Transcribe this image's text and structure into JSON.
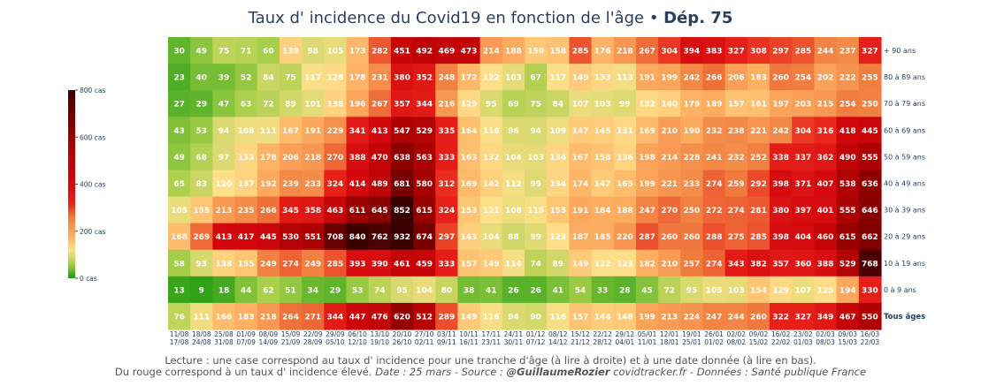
{
  "title_main": "Taux d' incidence du Covid19 en fonction de l'âge",
  "title_sep": " • ",
  "title_bold": "Dép. 75",
  "footer_line1": "Lecture : une case correspond au taux d' incidence pour une tranche d'âge (à lire à droite) et à une date donnée (à lire en bas).",
  "footer_line2_plain": "Du rouge correspond à un taux d' incidence élevé.",
  "footer_line2_italic": "Date : 25 mars - Source : ",
  "footer_line2_bold": "@GuillaumeRozier",
  "footer_line2_tail": " covidtracker.fr - Données : Santé publique France",
  "chart_data": {
    "type": "heatmap",
    "x_labels": [
      [
        "11/08",
        "17/08"
      ],
      [
        "18/08",
        "24/08"
      ],
      [
        "25/08",
        "31/08"
      ],
      [
        "01/09",
        "07/09"
      ],
      [
        "08/09",
        "14/09"
      ],
      [
        "15/09",
        "21/09"
      ],
      [
        "22/09",
        "28/09"
      ],
      [
        "29/09",
        "05/10"
      ],
      [
        "06/10",
        "12/10"
      ],
      [
        "13/10",
        "19/10"
      ],
      [
        "20/10",
        "26/10"
      ],
      [
        "27/10",
        "02/11"
      ],
      [
        "03/11",
        "09/11"
      ],
      [
        "10/11",
        "16/11"
      ],
      [
        "17/11",
        "23/11"
      ],
      [
        "24/11",
        "30/11"
      ],
      [
        "01/12",
        "07/12"
      ],
      [
        "08/12",
        "14/12"
      ],
      [
        "15/12",
        "21/12"
      ],
      [
        "22/12",
        "28/12"
      ],
      [
        "29/12",
        "04/01"
      ],
      [
        "05/01",
        "11/01"
      ],
      [
        "12/01",
        "18/01"
      ],
      [
        "19/01",
        "25/01"
      ],
      [
        "26/01",
        "01/02"
      ],
      [
        "02/02",
        "08/02"
      ],
      [
        "09/02",
        "15/02"
      ],
      [
        "16/02",
        "22/02"
      ],
      [
        "23/02",
        "01/03"
      ],
      [
        "02/03",
        "08/03"
      ],
      [
        "09/03",
        "15/03"
      ],
      [
        "16/03",
        "22/03"
      ]
    ],
    "y_labels": [
      "+ 90 ans",
      "80 à 89 ans",
      "70 à 79 ans",
      "60 à 69 ans",
      "50 à 59 ans",
      "40 à 49 ans",
      "30 à 39 ans",
      "20 à 29 ans",
      "10 à 19 ans",
      "0 à 9 ans",
      "Tous âges"
    ],
    "values": [
      [
        30,
        49,
        75,
        71,
        60,
        139,
        98,
        105,
        173,
        282,
        451,
        492,
        469,
        473,
        214,
        188,
        150,
        158,
        285,
        176,
        218,
        267,
        304,
        394,
        383,
        327,
        308,
        297,
        285,
        244,
        237,
        327
      ],
      [
        23,
        40,
        39,
        52,
        84,
        75,
        117,
        128,
        178,
        231,
        380,
        352,
        248,
        172,
        122,
        103,
        67,
        117,
        149,
        133,
        113,
        191,
        199,
        242,
        266,
        206,
        183,
        260,
        254,
        202,
        222,
        255
      ],
      [
        27,
        29,
        47,
        63,
        72,
        89,
        101,
        138,
        196,
        267,
        357,
        344,
        216,
        129,
        95,
        69,
        75,
        84,
        107,
        103,
        99,
        132,
        140,
        179,
        189,
        157,
        161,
        197,
        203,
        215,
        254,
        250
      ],
      [
        43,
        53,
        94,
        108,
        111,
        167,
        191,
        229,
        341,
        413,
        547,
        529,
        335,
        164,
        116,
        96,
        94,
        109,
        147,
        145,
        131,
        169,
        210,
        190,
        232,
        238,
        221,
        242,
        304,
        316,
        418,
        445
      ],
      [
        49,
        68,
        97,
        133,
        178,
        206,
        218,
        270,
        388,
        470,
        638,
        563,
        333,
        163,
        132,
        104,
        103,
        134,
        167,
        158,
        136,
        198,
        214,
        228,
        241,
        232,
        252,
        338,
        337,
        362,
        490,
        555
      ],
      [
        65,
        83,
        120,
        137,
        192,
        239,
        233,
        324,
        414,
        489,
        681,
        580,
        312,
        169,
        142,
        112,
        99,
        134,
        174,
        147,
        165,
        199,
        221,
        233,
        274,
        259,
        292,
        398,
        371,
        407,
        538,
        636
      ],
      [
        105,
        155,
        213,
        235,
        266,
        345,
        358,
        463,
        611,
        645,
        852,
        615,
        324,
        153,
        121,
        108,
        115,
        155,
        191,
        184,
        188,
        247,
        270,
        250,
        272,
        274,
        281,
        380,
        397,
        401,
        555,
        646
      ],
      [
        168,
        269,
        413,
        417,
        445,
        530,
        551,
        708,
        840,
        762,
        932,
        674,
        297,
        143,
        104,
        88,
        99,
        123,
        187,
        185,
        220,
        287,
        260,
        260,
        288,
        275,
        285,
        398,
        404,
        460,
        615,
        662
      ],
      [
        58,
        93,
        138,
        155,
        249,
        274,
        249,
        285,
        393,
        390,
        461,
        459,
        333,
        157,
        149,
        114,
        74,
        89,
        149,
        122,
        123,
        182,
        210,
        257,
        274,
        343,
        382,
        357,
        360,
        388,
        529,
        768
      ],
      [
        13,
        9,
        18,
        44,
        62,
        51,
        34,
        29,
        53,
        74,
        95,
        104,
        80,
        38,
        41,
        26,
        26,
        41,
        54,
        33,
        28,
        45,
        72,
        95,
        105,
        103,
        154,
        129,
        107,
        125,
        194,
        330
      ],
      [
        76,
        111,
        166,
        183,
        218,
        264,
        271,
        344,
        447,
        476,
        620,
        512,
        289,
        149,
        116,
        94,
        90,
        116,
        157,
        144,
        148,
        199,
        213,
        224,
        247,
        244,
        260,
        322,
        327,
        349,
        467,
        550
      ]
    ],
    "colorscale": [
      [
        0,
        "#1a9a0f"
      ],
      [
        0.075,
        "#a8cf4a"
      ],
      [
        0.15,
        "#fee08b"
      ],
      [
        0.23,
        "#fdae61"
      ],
      [
        0.32,
        "#f07d3f"
      ],
      [
        0.4,
        "#e8211a"
      ],
      [
        0.52,
        "#d2070c"
      ],
      [
        0.75,
        "#a00000"
      ],
      [
        1,
        "#3a0000"
      ]
    ],
    "zmin": 0,
    "zmax": 800,
    "colorbar_ticks": [
      {
        "value": 800,
        "label": "800 cas"
      },
      {
        "value": 600,
        "label": "600 cas"
      },
      {
        "value": 400,
        "label": "400 cas"
      },
      {
        "value": 200,
        "label": "200 cas"
      },
      {
        "value": 0,
        "label": "0 cas"
      }
    ],
    "bold_row_label": "Tous âges"
  }
}
